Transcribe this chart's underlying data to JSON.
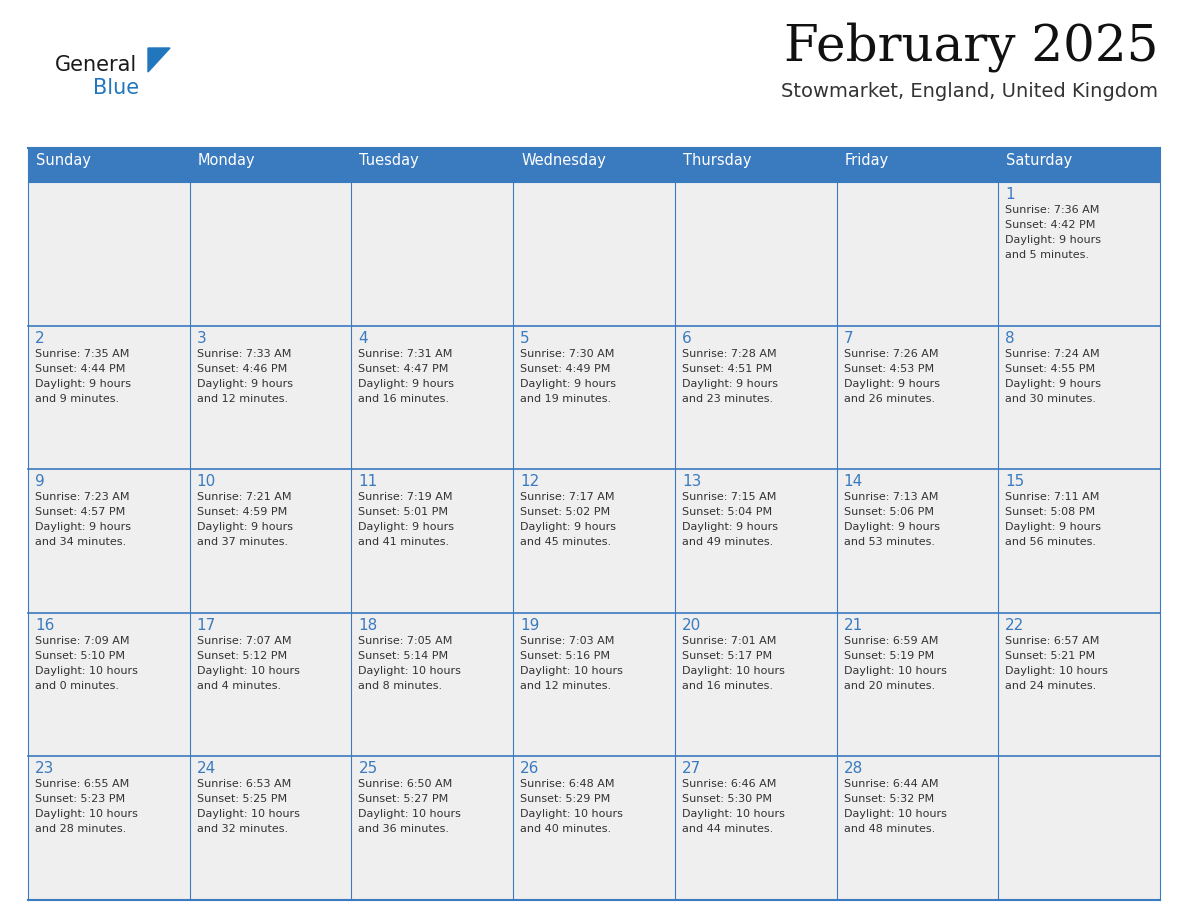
{
  "title": "February 2025",
  "subtitle": "Stowmarket, England, United Kingdom",
  "days_of_week": [
    "Sunday",
    "Monday",
    "Tuesday",
    "Wednesday",
    "Thursday",
    "Friday",
    "Saturday"
  ],
  "header_bg": "#3a7abf",
  "header_text": "#ffffff",
  "cell_bg_light": "#efefef",
  "cell_bg_white": "#ffffff",
  "grid_line_color": "#3a7abf",
  "day_number_color": "#3a7abf",
  "cell_text_color": "#333333",
  "weeks": [
    [
      null,
      null,
      null,
      null,
      null,
      null,
      1
    ],
    [
      2,
      3,
      4,
      5,
      6,
      7,
      8
    ],
    [
      9,
      10,
      11,
      12,
      13,
      14,
      15
    ],
    [
      16,
      17,
      18,
      19,
      20,
      21,
      22
    ],
    [
      23,
      24,
      25,
      26,
      27,
      28,
      null
    ]
  ],
  "sun_data": {
    "1": {
      "rise": "7:36 AM",
      "set": "4:42 PM",
      "day_hours": 9,
      "day_mins": 5
    },
    "2": {
      "rise": "7:35 AM",
      "set": "4:44 PM",
      "day_hours": 9,
      "day_mins": 9
    },
    "3": {
      "rise": "7:33 AM",
      "set": "4:46 PM",
      "day_hours": 9,
      "day_mins": 12
    },
    "4": {
      "rise": "7:31 AM",
      "set": "4:47 PM",
      "day_hours": 9,
      "day_mins": 16
    },
    "5": {
      "rise": "7:30 AM",
      "set": "4:49 PM",
      "day_hours": 9,
      "day_mins": 19
    },
    "6": {
      "rise": "7:28 AM",
      "set": "4:51 PM",
      "day_hours": 9,
      "day_mins": 23
    },
    "7": {
      "rise": "7:26 AM",
      "set": "4:53 PM",
      "day_hours": 9,
      "day_mins": 26
    },
    "8": {
      "rise": "7:24 AM",
      "set": "4:55 PM",
      "day_hours": 9,
      "day_mins": 30
    },
    "9": {
      "rise": "7:23 AM",
      "set": "4:57 PM",
      "day_hours": 9,
      "day_mins": 34
    },
    "10": {
      "rise": "7:21 AM",
      "set": "4:59 PM",
      "day_hours": 9,
      "day_mins": 37
    },
    "11": {
      "rise": "7:19 AM",
      "set": "5:01 PM",
      "day_hours": 9,
      "day_mins": 41
    },
    "12": {
      "rise": "7:17 AM",
      "set": "5:02 PM",
      "day_hours": 9,
      "day_mins": 45
    },
    "13": {
      "rise": "7:15 AM",
      "set": "5:04 PM",
      "day_hours": 9,
      "day_mins": 49
    },
    "14": {
      "rise": "7:13 AM",
      "set": "5:06 PM",
      "day_hours": 9,
      "day_mins": 53
    },
    "15": {
      "rise": "7:11 AM",
      "set": "5:08 PM",
      "day_hours": 9,
      "day_mins": 56
    },
    "16": {
      "rise": "7:09 AM",
      "set": "5:10 PM",
      "day_hours": 10,
      "day_mins": 0
    },
    "17": {
      "rise": "7:07 AM",
      "set": "5:12 PM",
      "day_hours": 10,
      "day_mins": 4
    },
    "18": {
      "rise": "7:05 AM",
      "set": "5:14 PM",
      "day_hours": 10,
      "day_mins": 8
    },
    "19": {
      "rise": "7:03 AM",
      "set": "5:16 PM",
      "day_hours": 10,
      "day_mins": 12
    },
    "20": {
      "rise": "7:01 AM",
      "set": "5:17 PM",
      "day_hours": 10,
      "day_mins": 16
    },
    "21": {
      "rise": "6:59 AM",
      "set": "5:19 PM",
      "day_hours": 10,
      "day_mins": 20
    },
    "22": {
      "rise": "6:57 AM",
      "set": "5:21 PM",
      "day_hours": 10,
      "day_mins": 24
    },
    "23": {
      "rise": "6:55 AM",
      "set": "5:23 PM",
      "day_hours": 10,
      "day_mins": 28
    },
    "24": {
      "rise": "6:53 AM",
      "set": "5:25 PM",
      "day_hours": 10,
      "day_mins": 32
    },
    "25": {
      "rise": "6:50 AM",
      "set": "5:27 PM",
      "day_hours": 10,
      "day_mins": 36
    },
    "26": {
      "rise": "6:48 AM",
      "set": "5:29 PM",
      "day_hours": 10,
      "day_mins": 40
    },
    "27": {
      "rise": "6:46 AM",
      "set": "5:30 PM",
      "day_hours": 10,
      "day_mins": 44
    },
    "28": {
      "rise": "6:44 AM",
      "set": "5:32 PM",
      "day_hours": 10,
      "day_mins": 48
    }
  },
  "logo_text1": "General",
  "logo_text2": "Blue",
  "logo_color1": "#1a1a1a",
  "logo_color2": "#2176bd",
  "logo_triangle_color": "#2176bd",
  "fig_width": 11.88,
  "fig_height": 9.18,
  "dpi": 100
}
